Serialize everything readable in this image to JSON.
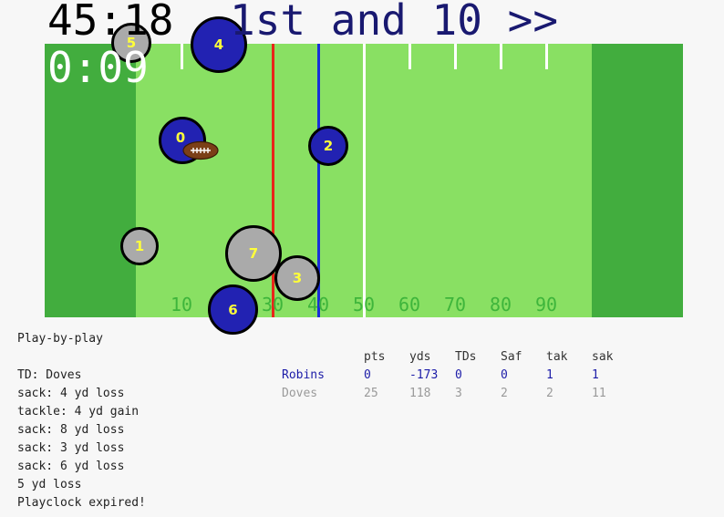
{
  "header": {
    "game_clock": "45:18",
    "down_and_distance": "1st and 10 >>",
    "play_clock": "0:09"
  },
  "field": {
    "colors": {
      "turf": "#89e063",
      "endzone": "#42ad3e",
      "scrimmage_line": "#e8261a",
      "first_down_line": "#1a2fd8",
      "home_player": "#2222b2",
      "away_player": "#aaaaaa",
      "player_number": "#ffff3a"
    },
    "yard_numbers": [
      "10",
      "20",
      "30",
      "40",
      "50",
      "60",
      "70",
      "80",
      "90"
    ],
    "scrimmage_yard": 25,
    "first_down_yard": 35,
    "ball_icon": "football-icon"
  },
  "players": [
    {
      "team": "away",
      "number": "5"
    },
    {
      "team": "home",
      "number": "4"
    },
    {
      "team": "home",
      "number": "0"
    },
    {
      "team": "home",
      "number": "2"
    },
    {
      "team": "away",
      "number": "1"
    },
    {
      "team": "away",
      "number": "7"
    },
    {
      "team": "away",
      "number": "3"
    },
    {
      "team": "home",
      "number": "6"
    }
  ],
  "play_by_play": {
    "title": "Play-by-play",
    "entries": [
      "TD: Doves",
      "sack: 4 yd loss",
      "tackle: 4 yd gain",
      "sack: 8 yd loss",
      "sack: 3 yd loss",
      "sack: 6 yd loss",
      "5 yd loss",
      "Playclock expired!"
    ]
  },
  "scoreboard": {
    "columns": [
      "pts",
      "yds",
      "TDs",
      "Saf",
      "tak",
      "sak"
    ],
    "rows": [
      {
        "team": "Robins",
        "values": [
          "0",
          "-173",
          "0",
          "0",
          "1",
          "1"
        ]
      },
      {
        "team": "Doves",
        "values": [
          "25",
          "118",
          "3",
          "2",
          "2",
          "11"
        ]
      }
    ]
  }
}
